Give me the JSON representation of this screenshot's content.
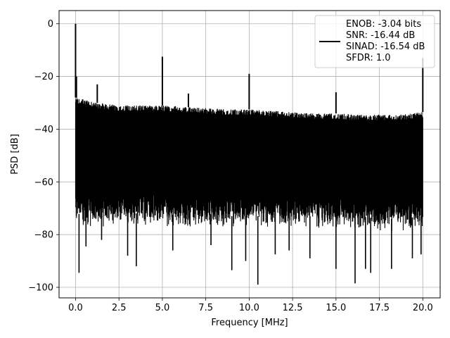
{
  "chart_data": {
    "type": "line",
    "title": "",
    "xlabel": "Frequency [MHz]",
    "ylabel": "PSD [dB]",
    "xlim": [
      -0.95,
      21.0
    ],
    "ylim": [
      -104.0,
      5.0
    ],
    "x_ticks": [
      0.0,
      2.5,
      5.0,
      7.5,
      10.0,
      12.5,
      15.0,
      17.5,
      20.0
    ],
    "x_tick_labels": [
      "0.0",
      "2.5",
      "5.0",
      "7.5",
      "10.0",
      "12.5",
      "15.0",
      "17.5",
      "20.0"
    ],
    "y_ticks": [
      0,
      -20,
      -40,
      -60,
      -80,
      -100
    ],
    "y_tick_labels": [
      "0",
      "−20",
      "−40",
      "−60",
      "−80",
      "−100"
    ],
    "grid": true,
    "legend_position": "top-right",
    "legend": [
      "ENOB: -3.04 bits",
      "SNR: -16.44 dB",
      "SINAD: -16.54 dB",
      "SFDR: 1.0"
    ],
    "line_color": "#000000",
    "noise_band": {
      "x": [
        0.0,
        1.25,
        2.5,
        3.75,
        5.0,
        6.25,
        7.5,
        8.75,
        10.0,
        11.25,
        12.5,
        13.75,
        15.0,
        16.25,
        17.5,
        18.75,
        20.0
      ],
      "upper": [
        -28,
        -30,
        -31,
        -31,
        -31,
        -31.5,
        -32,
        -32.5,
        -32.5,
        -33,
        -33.5,
        -34,
        -34,
        -34.5,
        -34.5,
        -34.5,
        -33.5
      ],
      "lower": [
        -72,
        -73,
        -72,
        -72,
        -72,
        -73,
        -72,
        -73,
        -73,
        -73,
        -73,
        -73,
        -73,
        -73,
        -74,
        -74,
        -73
      ]
    },
    "spikes": [
      {
        "x": 0.0,
        "y": 0.0
      },
      {
        "x": 0.05,
        "y": -20.0
      },
      {
        "x": 1.25,
        "y": -23.0
      },
      {
        "x": 5.0,
        "y": -12.5
      },
      {
        "x": 6.5,
        "y": -26.5
      },
      {
        "x": 10.0,
        "y": -19.0
      },
      {
        "x": 15.0,
        "y": -26.0
      },
      {
        "x": 20.0,
        "y": -13.0
      }
    ],
    "dips": [
      {
        "x": 0.2,
        "y": -94.5
      },
      {
        "x": 0.6,
        "y": -84.5
      },
      {
        "x": 1.5,
        "y": -82.0
      },
      {
        "x": 3.0,
        "y": -88.0
      },
      {
        "x": 3.5,
        "y": -92.0
      },
      {
        "x": 5.6,
        "y": -86.0
      },
      {
        "x": 7.8,
        "y": -84.0
      },
      {
        "x": 9.0,
        "y": -93.5
      },
      {
        "x": 9.8,
        "y": -90.0
      },
      {
        "x": 10.5,
        "y": -99.0
      },
      {
        "x": 11.5,
        "y": -87.5
      },
      {
        "x": 12.3,
        "y": -86.0
      },
      {
        "x": 13.5,
        "y": -89.0
      },
      {
        "x": 15.0,
        "y": -93.0
      },
      {
        "x": 16.1,
        "y": -98.5
      },
      {
        "x": 16.7,
        "y": -93.0
      },
      {
        "x": 17.0,
        "y": -94.5
      },
      {
        "x": 18.2,
        "y": -93.0
      },
      {
        "x": 19.4,
        "y": -89.0
      },
      {
        "x": 19.9,
        "y": -87.5
      }
    ]
  }
}
